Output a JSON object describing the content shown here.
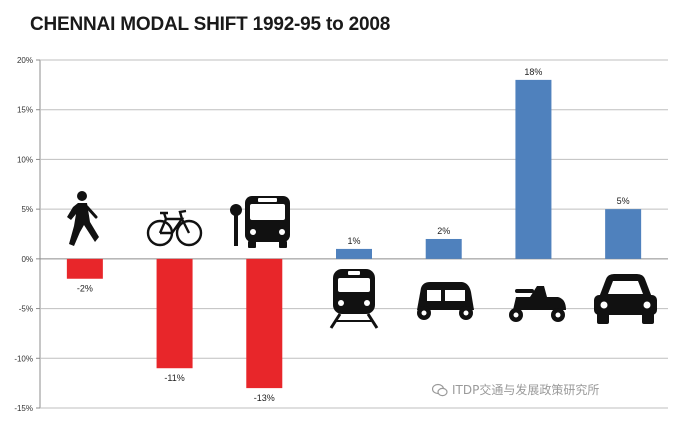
{
  "chart_data": {
    "type": "bar",
    "title": "CHENNAI MODAL SHIFT 1992-95 to 2008",
    "categories": [
      "",
      "",
      "",
      "",
      "",
      "",
      ""
    ],
    "category_icons": [
      "walking-icon",
      "bicycle-icon",
      "bus-icon",
      "train-icon",
      "auto-rickshaw-icon",
      "scooter-icon",
      "car-icon"
    ],
    "values": [
      -2,
      -11,
      -13,
      1,
      2,
      18,
      5
    ],
    "value_labels": [
      "-2%",
      "-11%",
      "-13%",
      "1%",
      "2%",
      "18%",
      "5%"
    ],
    "ylim": [
      -15,
      20
    ],
    "yticks": [
      20,
      15,
      10,
      5,
      0,
      -5,
      -10,
      -15
    ],
    "ytick_labels": [
      "20%",
      "15%",
      "10%",
      "5%",
      "0%",
      "-5%",
      "-10%",
      "-15%"
    ],
    "xlabel": "",
    "ylabel": "",
    "grid": true,
    "colors": {
      "negative": "#e8262a",
      "positive": "#4f81bd",
      "grid": "#bfbfbf",
      "axis": "#8c8c8c",
      "icon": "#111111"
    }
  },
  "watermark": {
    "text": "ITDP交通与发展政策研究所"
  }
}
